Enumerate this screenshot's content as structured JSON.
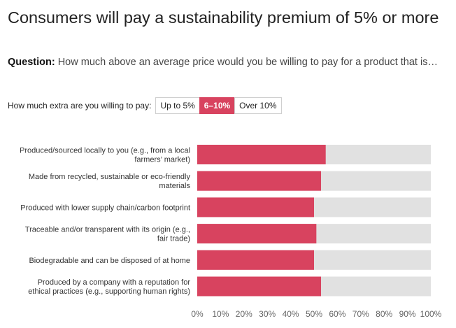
{
  "header": {
    "title": "Consumers will pay a sustainability premium of 5% or more",
    "question_label": "Question:",
    "question_text": " How much above an average price would you be willing to pay for a product that is…"
  },
  "toggle": {
    "label": "How much extra are you willing to pay:",
    "options": [
      "Up to 5%",
      "6–10%",
      "Over 10%"
    ],
    "selected": "6–10%"
  },
  "colors": {
    "bar": "#d8435f",
    "track": "#e1e1e1"
  },
  "chart_data": {
    "type": "bar",
    "orientation": "horizontal",
    "categories": [
      [
        "Produced/sourced locally to you (e.g., from a local",
        "farmers’ market)"
      ],
      [
        "Made from recycled, sustainable or eco-friendly",
        "materials"
      ],
      [
        "Produced with lower supply chain/carbon footprint"
      ],
      [
        "Traceable and/or transparent with its origin (e.g.,",
        "fair trade)"
      ],
      [
        "Biodegradable and can be disposed of at home"
      ],
      [
        "Produced by a company with a reputation for",
        "ethical practices (e.g., supporting human rights)"
      ]
    ],
    "values": [
      55,
      53,
      50,
      51,
      50,
      53
    ],
    "xlim": [
      0,
      100
    ],
    "ticks": [
      "0%",
      "10%",
      "20%",
      "30%",
      "40%",
      "50%",
      "60%",
      "70%",
      "80%",
      "90%",
      "100%"
    ],
    "title": "Consumers will pay a sustainability premium of 5% or more"
  }
}
